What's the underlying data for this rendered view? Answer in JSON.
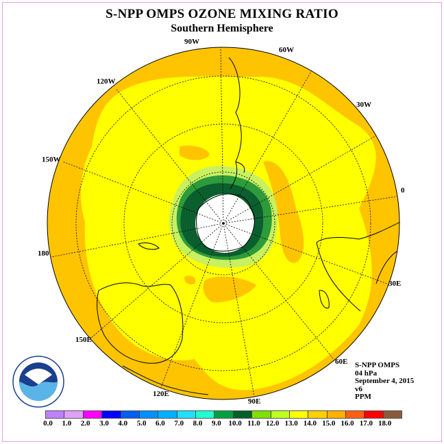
{
  "title": "S-NPP OMPS OZONE MIXING RATIO",
  "subtitle": "Southern Hemisphere",
  "map": {
    "projection": "polar stereographic (south pole)",
    "longitude_labels": [
      "90W",
      "60W",
      "30W",
      "0",
      "30E",
      "60E",
      "90E",
      "120E",
      "150E",
      "180",
      "150W",
      "120W"
    ],
    "colors": {
      "outer": "#ffc400",
      "mid": "#ffff00",
      "light_green": "#b8f02a",
      "green": "#228b22",
      "dark_green": "#0b5f2e",
      "pole_hole": "#ffffff"
    }
  },
  "metadata": {
    "instrument": "S-NPP OMPS",
    "level": "04 hPa",
    "date": "September 4, 2015",
    "version": "v6",
    "units": "PPM"
  },
  "logo": {
    "text": "NOAA",
    "ring_text": "NATIONAL OCEANIC AND ATMOSPHERIC ADMINISTRATION · U.S. DEPARTMENT OF COMMERCE"
  },
  "colorbar": {
    "labels": [
      "0.0",
      "1.0",
      "2.0",
      "3.0",
      "4.0",
      "5.0",
      "6.0",
      "7.0",
      "8.0",
      "9.0",
      "10.0",
      "11.0",
      "12.0",
      "13.0",
      "14.0",
      "15.0",
      "16.0",
      "17.0",
      "18.0"
    ],
    "colors": [
      "#c080ff",
      "#e0a0ff",
      "#ff00ff",
      "#0000ff",
      "#0060f0",
      "#0090ff",
      "#00b0ff",
      "#20e0ff",
      "#20ffd0",
      "#00a040",
      "#006028",
      "#80e000",
      "#c0ff20",
      "#ffff00",
      "#ffd000",
      "#ffb000",
      "#ff6010",
      "#ff0000",
      "#8b5a3c"
    ]
  }
}
